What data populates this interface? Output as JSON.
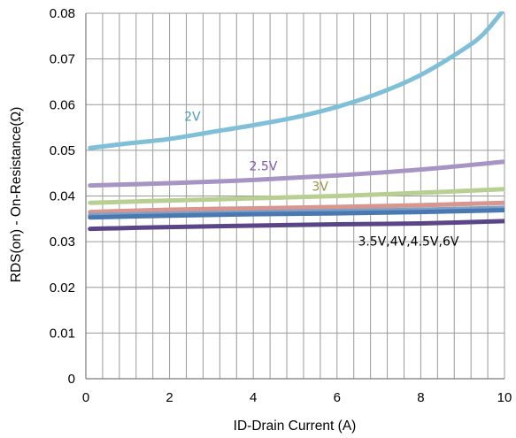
{
  "chart_data": {
    "type": "line",
    "xlabel": "ID-Drain Current (A)",
    "ylabel": "RDS(on) - On-Resistance(Ω)",
    "xlim": [
      0,
      10
    ],
    "ylim": [
      0,
      0.08
    ],
    "x_ticks": [
      "0",
      "2",
      "4",
      "6",
      "8",
      "10"
    ],
    "y_ticks": [
      "0",
      "0.01",
      "0.02",
      "0.03",
      "0.04",
      "0.05",
      "0.06",
      "0.07",
      "0.08"
    ],
    "grid": true,
    "series": [
      {
        "name": "2V",
        "color": "#7fc0d8",
        "label_color": "#4a9cb8",
        "points": [
          [
            0.1,
            0.0505
          ],
          [
            1,
            0.0515
          ],
          [
            2,
            0.0525
          ],
          [
            3,
            0.054
          ],
          [
            4,
            0.0555
          ],
          [
            5,
            0.0572
          ],
          [
            6,
            0.0595
          ],
          [
            7,
            0.0625
          ],
          [
            8,
            0.0665
          ],
          [
            9,
            0.072
          ],
          [
            9.5,
            0.0755
          ],
          [
            10,
            0.081
          ]
        ]
      },
      {
        "name": "2.5V",
        "color": "#a694c4",
        "label_color": "#8058b0",
        "points": [
          [
            0.1,
            0.0423
          ],
          [
            2,
            0.0428
          ],
          [
            4,
            0.0435
          ],
          [
            6,
            0.0445
          ],
          [
            8,
            0.0458
          ],
          [
            10,
            0.0475
          ]
        ]
      },
      {
        "name": "3V",
        "color": "#b8cf92",
        "label_color": "#a09040",
        "points": [
          [
            0.1,
            0.0385
          ],
          [
            2,
            0.039
          ],
          [
            4,
            0.0395
          ],
          [
            6,
            0.04
          ],
          [
            8,
            0.0407
          ],
          [
            10,
            0.0415
          ]
        ]
      },
      {
        "name": "",
        "color": "#d8968e",
        "points": [
          [
            0.1,
            0.0365
          ],
          [
            2,
            0.037
          ],
          [
            4,
            0.0373
          ],
          [
            6,
            0.0376
          ],
          [
            8,
            0.038
          ],
          [
            10,
            0.0385
          ]
        ]
      },
      {
        "name": "",
        "color": "#7da0c8",
        "points": [
          [
            0.1,
            0.0358
          ],
          [
            2,
            0.0361
          ],
          [
            4,
            0.0364
          ],
          [
            6,
            0.0367
          ],
          [
            8,
            0.037
          ],
          [
            10,
            0.0374
          ]
        ]
      },
      {
        "name": "",
        "color": "#4a78b0",
        "points": [
          [
            0.1,
            0.0353
          ],
          [
            2,
            0.0357
          ],
          [
            4,
            0.036
          ],
          [
            6,
            0.0362
          ],
          [
            8,
            0.0365
          ],
          [
            10,
            0.0369
          ]
        ]
      },
      {
        "name": "",
        "color": "#5a4588",
        "points": [
          [
            0.1,
            0.0328
          ],
          [
            2,
            0.0332
          ],
          [
            4,
            0.0335
          ],
          [
            6,
            0.0338
          ],
          [
            8,
            0.034
          ],
          [
            10,
            0.0345
          ]
        ]
      }
    ],
    "annotations": [
      {
        "text": "2V",
        "x": 2.35,
        "y": 0.0565,
        "color": "#4a9cb8"
      },
      {
        "text": "2.5V",
        "x": 3.9,
        "y": 0.0456,
        "color": "#8058b0"
      },
      {
        "text": "3V",
        "x": 5.4,
        "y": 0.0412,
        "color": "#a09040"
      },
      {
        "text": "3.5V,4V,4.5V,6V",
        "x": 6.5,
        "y": 0.0292,
        "color": "#000000"
      }
    ]
  }
}
